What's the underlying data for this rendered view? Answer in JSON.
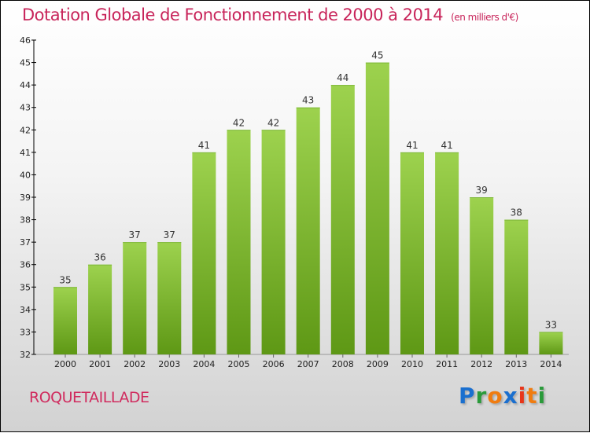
{
  "chart_data": {
    "type": "bar",
    "title": "Dotation Globale de Fonctionnement de 2000 à 2014",
    "subtitle": "(en milliers d'€)",
    "categories": [
      "2000",
      "2001",
      "2002",
      "2003",
      "2004",
      "2005",
      "2006",
      "2007",
      "2008",
      "2009",
      "2010",
      "2011",
      "2012",
      "2013",
      "2014"
    ],
    "values": [
      35,
      36,
      37,
      37,
      41,
      42,
      42,
      43,
      44,
      45,
      41,
      41,
      39,
      38,
      33
    ],
    "ylim": [
      32,
      46
    ],
    "yticks": [
      32,
      33,
      34,
      35,
      36,
      37,
      38,
      39,
      40,
      41,
      42,
      43,
      44,
      45,
      46
    ],
    "xlabel": "",
    "ylabel": "",
    "bar_color_top": "#9dd24e",
    "bar_color_bottom": "#5e9815"
  },
  "commune": "ROQUETAILLADE",
  "logo": {
    "letters": [
      "P",
      "r",
      "o",
      "x",
      "i",
      "t",
      "i"
    ],
    "colors": [
      "#1a6fcf",
      "#2a9a3a",
      "#f07c10",
      "#1a6fcf",
      "#e8361a",
      "#f07c10",
      "#2a9a3a"
    ]
  }
}
